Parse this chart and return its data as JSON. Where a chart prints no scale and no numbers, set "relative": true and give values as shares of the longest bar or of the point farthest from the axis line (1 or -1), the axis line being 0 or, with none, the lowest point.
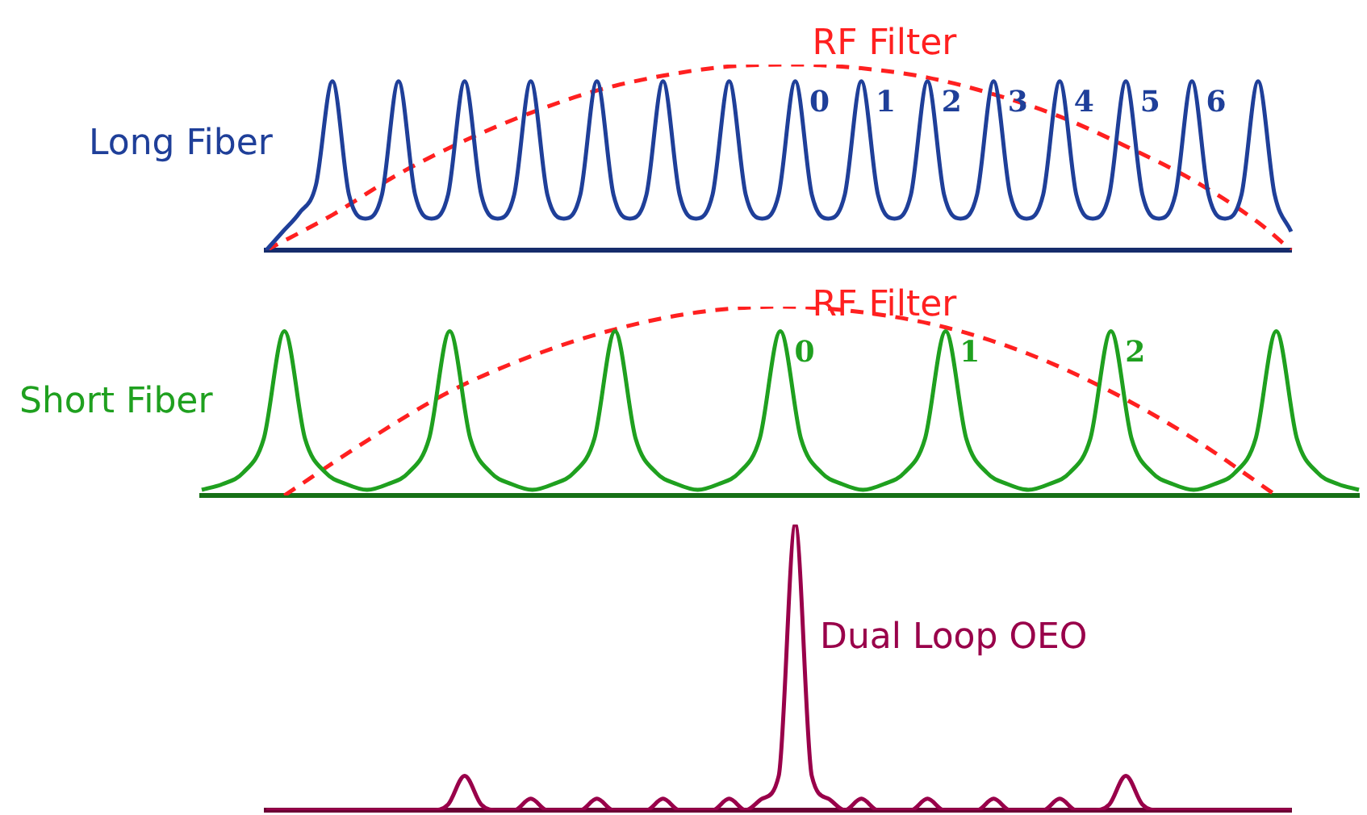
{
  "chart_data": [
    {
      "type": "line",
      "relative": true,
      "tick_labels": false,
      "marker": "none",
      "annotations": [
        "0",
        "1",
        "2",
        "3",
        "4",
        "5",
        "6"
      ],
      "categories": [
        null,
        null,
        null,
        null,
        null,
        null,
        null,
        null,
        null,
        null,
        null,
        null,
        null,
        null,
        null,
        null,
        null,
        null,
        null,
        null,
        null,
        null,
        null,
        null,
        null,
        null,
        null,
        null,
        null,
        null,
        null,
        null,
        null,
        null,
        null,
        null,
        null,
        null,
        null,
        null,
        null,
        null,
        null,
        null,
        null,
        null,
        null,
        null,
        null,
        null,
        null,
        null,
        null,
        null,
        null,
        null,
        null,
        null,
        null,
        null,
        null,
        null,
        null
      ],
      "series": [
        {
          "name": "Long Fiber",
          "color": "#1f3f99",
          "line_style": "solid",
          "values": [
            0,
            0.1,
            0.2,
            0.35,
            0.91,
            0.3,
            0.17,
            0.3,
            0.91,
            0.3,
            0.17,
            0.3,
            0.91,
            0.3,
            0.17,
            0.3,
            0.91,
            0.3,
            0.17,
            0.3,
            0.91,
            0.3,
            0.17,
            0.3,
            0.91,
            0.3,
            0.17,
            0.3,
            0.91,
            0.3,
            0.17,
            0.3,
            0.91,
            0.3,
            0.17,
            0.3,
            0.91,
            0.3,
            0.17,
            0.3,
            0.91,
            0.3,
            0.17,
            0.3,
            0.91,
            0.3,
            0.17,
            0.3,
            0.91,
            0.3,
            0.17,
            0.3,
            0.91,
            0.3,
            0.17,
            0.3,
            0.91,
            0.3,
            0.17,
            0.3,
            0.91,
            0.3,
            0.1
          ]
        },
        {
          "name": "RF Filter",
          "color": "#ff2020",
          "line_style": "dashed",
          "values": [
            0,
            null,
            null,
            null,
            0.19,
            null,
            null,
            null,
            0.41,
            null,
            null,
            null,
            0.59,
            null,
            null,
            null,
            0.74,
            null,
            null,
            null,
            0.86,
            null,
            null,
            null,
            0.94,
            null,
            null,
            null,
            0.99,
            null,
            null,
            null,
            1.0,
            null,
            null,
            null,
            0.98,
            null,
            null,
            null,
            0.93,
            null,
            null,
            null,
            0.84,
            null,
            null,
            null,
            0.72,
            null,
            null,
            null,
            0.56,
            null,
            null,
            null,
            0.38,
            null,
            null,
            null,
            0.15,
            null,
            0
          ]
        }
      ]
    },
    {
      "type": "line",
      "relative": true,
      "tick_labels": false,
      "marker": "none",
      "annotations": [
        "0",
        "1",
        "2"
      ],
      "categories": [
        null,
        null,
        null,
        null,
        null,
        null,
        null,
        null,
        null,
        null,
        null,
        null,
        null,
        null,
        null,
        null,
        null,
        null,
        null,
        null,
        null,
        null,
        null,
        null,
        null,
        null,
        null,
        null,
        null,
        null,
        null,
        null,
        null,
        null,
        null,
        null,
        null,
        null,
        null,
        null,
        null,
        null,
        null,
        null,
        null,
        null,
        null,
        null,
        null,
        null,
        null,
        null,
        null,
        null,
        null,
        null,
        null
      ],
      "series": [
        {
          "name": "Short Fiber",
          "color": "#1fa01f",
          "line_style": "solid",
          "values": [
            0.03,
            0.06,
            0.12,
            0.3,
            0.87,
            0.3,
            0.12,
            0.06,
            0.03,
            0.06,
            0.12,
            0.3,
            0.87,
            0.3,
            0.12,
            0.06,
            0.03,
            0.06,
            0.12,
            0.3,
            0.87,
            0.3,
            0.12,
            0.06,
            0.03,
            0.06,
            0.12,
            0.3,
            0.87,
            0.3,
            0.12,
            0.06,
            0.03,
            0.06,
            0.12,
            0.3,
            0.87,
            0.3,
            0.12,
            0.06,
            0.03,
            0.06,
            0.12,
            0.3,
            0.87,
            0.3,
            0.12,
            0.06,
            0.03,
            0.06,
            0.12,
            0.3,
            0.87,
            0.3,
            0.12,
            0.06,
            0.03
          ]
        },
        {
          "name": "RF Filter",
          "color": "#ff2020",
          "line_style": "dashed",
          "values": [
            null,
            null,
            null,
            null,
            0,
            null,
            null,
            null,
            0.29,
            null,
            null,
            null,
            0.55,
            null,
            null,
            null,
            0.74,
            null,
            null,
            null,
            0.88,
            null,
            null,
            null,
            0.97,
            null,
            null,
            null,
            1.0,
            null,
            null,
            null,
            0.97,
            null,
            null,
            null,
            0.89,
            null,
            null,
            null,
            0.75,
            null,
            null,
            null,
            0.55,
            null,
            null,
            null,
            0.3,
            null,
            null,
            null,
            0,
            null,
            null,
            null,
            null
          ]
        }
      ]
    },
    {
      "type": "line",
      "relative": true,
      "tick_labels": false,
      "marker": "none",
      "categories": [
        null,
        null,
        null,
        null,
        null,
        null,
        null,
        null,
        null,
        null,
        null,
        null,
        null,
        null,
        null,
        null,
        null,
        null,
        null,
        null,
        null,
        null,
        null,
        null,
        null,
        null,
        null,
        null,
        null,
        null,
        null,
        null,
        null,
        null,
        null,
        null,
        null,
        null,
        null,
        null,
        null,
        null,
        null,
        null,
        null,
        null,
        null,
        null,
        null,
        null,
        null,
        null,
        null,
        null,
        null,
        null,
        null,
        null,
        null,
        null,
        null,
        null,
        null
      ],
      "series": [
        {
          "name": "Dual Loop OEO",
          "color": "#99004a",
          "line_style": "solid",
          "values": [
            0,
            0,
            0,
            0,
            0,
            0,
            0,
            0,
            0,
            0,
            0,
            0.02,
            0.12,
            0.02,
            0,
            0,
            0.04,
            0,
            0,
            0,
            0.04,
            0,
            0,
            0,
            0.04,
            0,
            0,
            0,
            0.04,
            0,
            0.04,
            0.12,
            1,
            0.12,
            0.04,
            0,
            0.04,
            0,
            0,
            0,
            0.04,
            0,
            0,
            0,
            0.04,
            0,
            0,
            0,
            0.04,
            0,
            0,
            0.02,
            0.12,
            0.02,
            0,
            0,
            0,
            0,
            0,
            0,
            0,
            0,
            0
          ]
        }
      ]
    }
  ]
}
